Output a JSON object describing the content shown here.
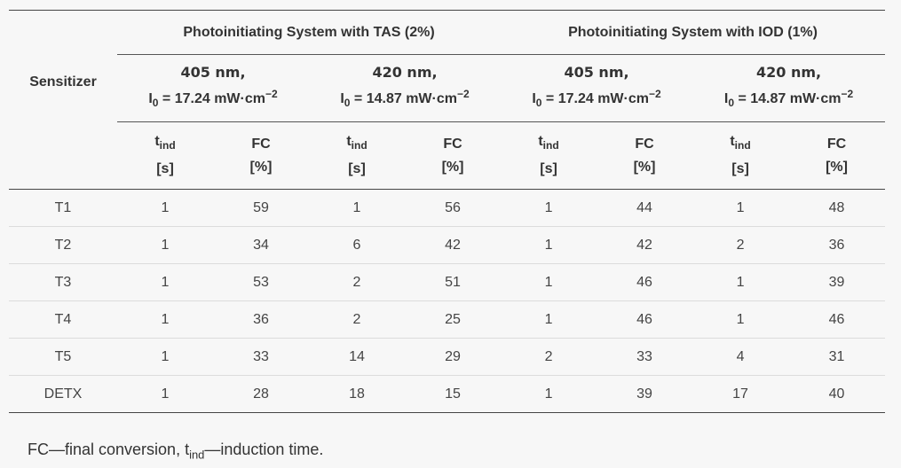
{
  "header": {
    "sensitizer_label": "Sensitizer",
    "groups": [
      {
        "title": "Photoinitiating System with TAS (2%)"
      },
      {
        "title": "Photoinitiating System with IOD (1%)"
      }
    ],
    "wavelengths": [
      {
        "nm": "405 nm,",
        "intensity_prefix": "I",
        "intensity_sub": "0",
        "intensity_value": " = 17.24 mW·cm",
        "intensity_sup": "−2"
      },
      {
        "nm": "420 nm,",
        "intensity_prefix": "I",
        "intensity_sub": "0",
        "intensity_value": " = 14.87 mW·cm",
        "intensity_sup": "−2"
      },
      {
        "nm": "405 nm,",
        "intensity_prefix": "I",
        "intensity_sub": "0",
        "intensity_value": " = 17.24 mW·cm",
        "intensity_sup": "−2"
      },
      {
        "nm": "420 nm,",
        "intensity_prefix": "I",
        "intensity_sub": "0",
        "intensity_value": " = 14.87 mW·cm",
        "intensity_sup": "−2"
      }
    ],
    "tind": {
      "t": "t",
      "sub": "ind",
      "unit": "[s]"
    },
    "fc": {
      "label": "FC",
      "unit": "[%]"
    }
  },
  "rows": [
    {
      "name": "T1",
      "values": [
        "1",
        "59",
        "1",
        "56",
        "1",
        "44",
        "1",
        "48"
      ]
    },
    {
      "name": "T2",
      "values": [
        "1",
        "34",
        "6",
        "42",
        "1",
        "42",
        "2",
        "36"
      ]
    },
    {
      "name": "T3",
      "values": [
        "1",
        "53",
        "2",
        "51",
        "1",
        "46",
        "1",
        "39"
      ]
    },
    {
      "name": "T4",
      "values": [
        "1",
        "36",
        "2",
        "25",
        "1",
        "46",
        "1",
        "46"
      ]
    },
    {
      "name": "T5",
      "values": [
        "1",
        "33",
        "14",
        "29",
        "2",
        "33",
        "4",
        "31"
      ]
    },
    {
      "name": "DETX",
      "values": [
        "1",
        "28",
        "18",
        "15",
        "1",
        "39",
        "17",
        "40"
      ]
    }
  ],
  "footnote": {
    "part1": "FC—final conversion, t",
    "sub": "ind",
    "part2": "—induction time."
  }
}
